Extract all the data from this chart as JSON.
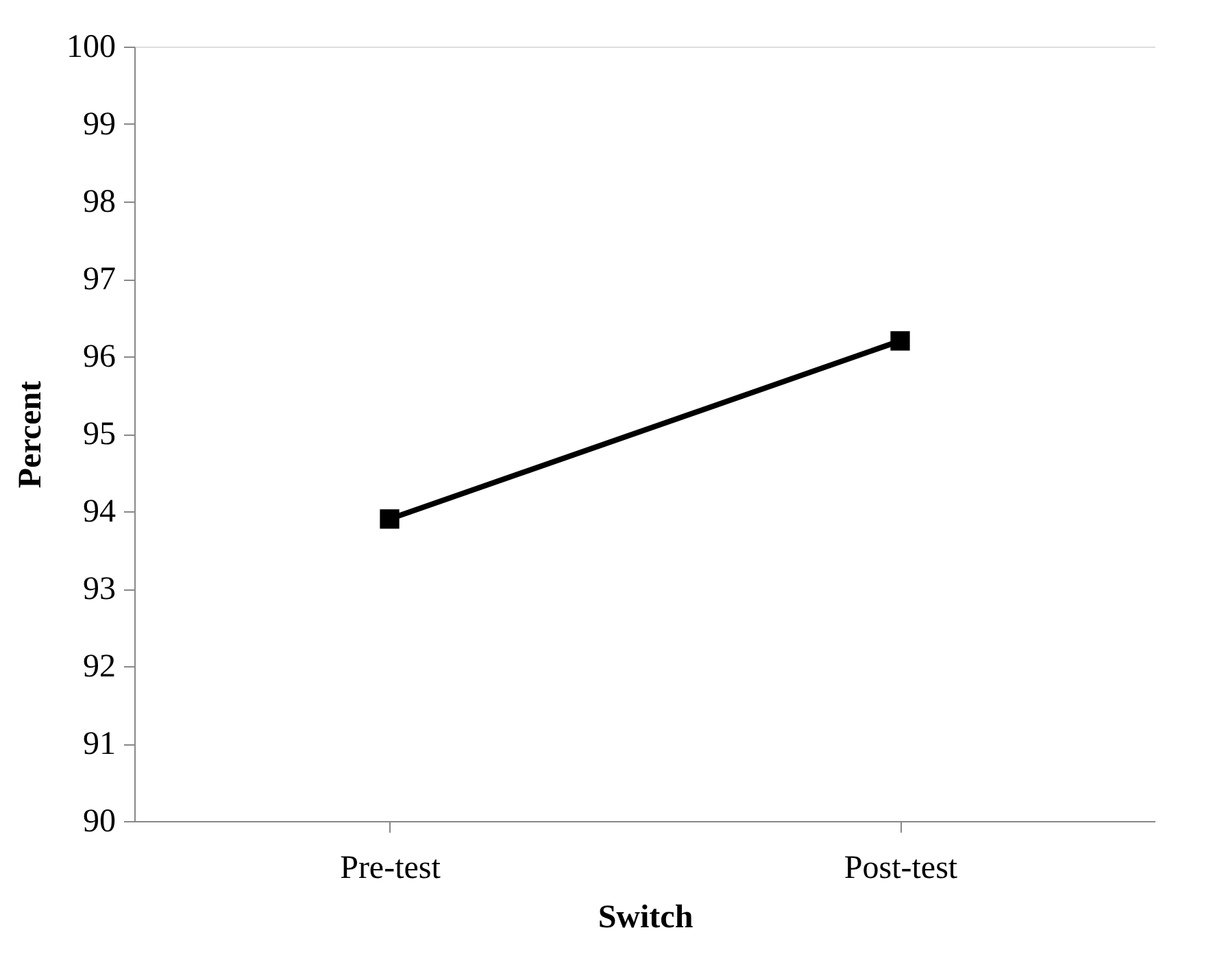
{
  "chart_data": {
    "type": "line",
    "xlabel": "Switch",
    "ylabel": "Percent",
    "categories": [
      "Pre-test",
      "Post-test"
    ],
    "series": [
      {
        "color": "#000000",
        "values": [
          93.9,
          96.2
        ]
      }
    ],
    "ylim": [
      90,
      100
    ],
    "yticks": [
      90,
      91,
      92,
      93,
      94,
      95,
      96,
      97,
      98,
      99,
      100
    ],
    "marker": "square",
    "line_style": "solid",
    "grid": false,
    "legend": false
  }
}
